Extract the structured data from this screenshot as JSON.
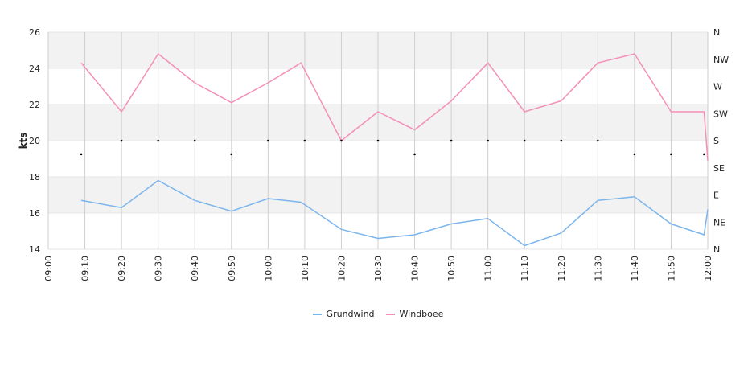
{
  "chart_data": {
    "type": "line",
    "title": "",
    "xlabel": "",
    "ylabel": "kts",
    "ylim": [
      14,
      26
    ],
    "y_ticks": [
      "14",
      "16",
      "18",
      "20",
      "22",
      "24",
      "26"
    ],
    "y2_ticks": [
      "N",
      "NE",
      "E",
      "SE",
      "S",
      "SW",
      "W",
      "NW",
      "N"
    ],
    "x_ticks": [
      "09:00",
      "09:10",
      "09:20",
      "09:30",
      "09:40",
      "09:50",
      "10:00",
      "10:10",
      "10:20",
      "10:30",
      "10:40",
      "10:50",
      "11:00",
      "11:10",
      "11:20",
      "11:30",
      "11:40",
      "11:50",
      "12:00"
    ],
    "x": [
      "09:09",
      "09:20",
      "09:30",
      "09:40",
      "09:50",
      "10:00",
      "10:09",
      "10:20",
      "10:30",
      "10:40",
      "10:50",
      "11:00",
      "11:10",
      "11:20",
      "11:30",
      "11:40",
      "11:50",
      "11:59",
      "12:00"
    ],
    "series": [
      {
        "name": "Grundwind",
        "color": "#7cb5ec",
        "values": [
          16.7,
          16.3,
          17.8,
          16.7,
          16.1,
          16.8,
          16.6,
          15.1,
          14.6,
          14.8,
          15.4,
          15.7,
          14.2,
          14.9,
          16.7,
          16.9,
          15.4,
          14.8,
          16.2
        ]
      },
      {
        "name": "Windboee",
        "color": "#f48fb8",
        "values": [
          24.3,
          21.6,
          24.8,
          23.2,
          22.1,
          23.2,
          24.3,
          20.0,
          21.6,
          20.6,
          22.2,
          24.3,
          21.6,
          22.2,
          24.3,
          24.8,
          21.6,
          21.6,
          18.9
        ]
      }
    ],
    "direction": {
      "x": [
        "09:09",
        "09:20",
        "09:30",
        "09:40",
        "09:50",
        "10:00",
        "10:10",
        "10:20",
        "10:30",
        "10:40",
        "10:50",
        "11:00",
        "11:10",
        "11:20",
        "11:30",
        "11:40",
        "11:50",
        "11:59"
      ],
      "values": [
        "SSE",
        "S",
        "S",
        "S",
        "SSE",
        "S",
        "S",
        "S",
        "S",
        "SSE",
        "S",
        "S",
        "S",
        "S",
        "S",
        "SSE",
        "SSE",
        "SSE"
      ]
    },
    "grid": true,
    "legend_position": "bottom"
  }
}
